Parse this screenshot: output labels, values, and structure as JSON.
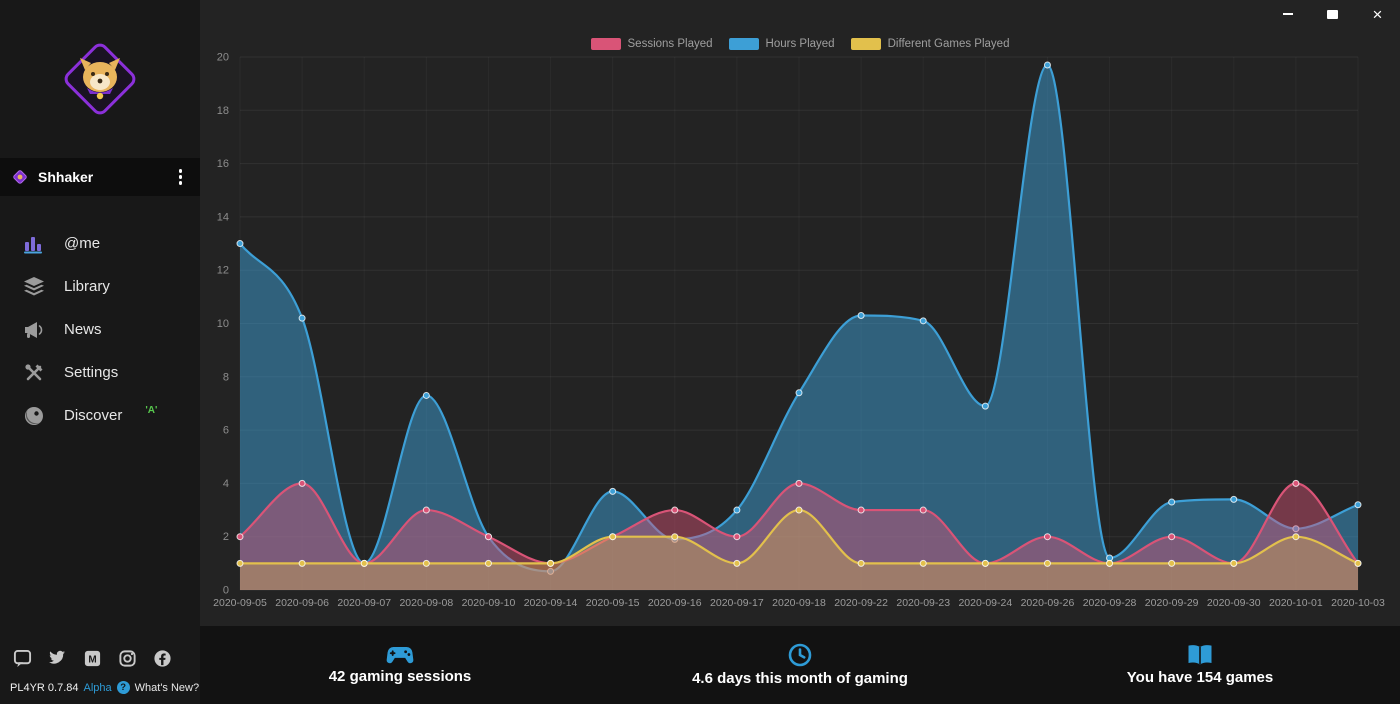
{
  "sidebar": {
    "user": {
      "name": "Shhaker"
    },
    "nav": [
      {
        "label": "@me"
      },
      {
        "label": "Library"
      },
      {
        "label": "News"
      },
      {
        "label": "Settings"
      },
      {
        "label": "Discover",
        "badge": "'A'"
      }
    ],
    "footer": {
      "version": "PL4YR 0.7.84",
      "channel": "Alpha",
      "help": "?",
      "whats_new": "What's New?"
    }
  },
  "stats": [
    {
      "icon": "gamepad-icon",
      "label": "42 gaming sessions"
    },
    {
      "icon": "clock-icon",
      "label": "4.6 days this month of gaming"
    },
    {
      "icon": "book-icon",
      "label": "You have 154 games"
    }
  ],
  "colors": {
    "accent_blue": "#2e9bd6",
    "sessions_pink": "#d95477",
    "hours_blue": "#3d9fd6",
    "games_yellow": "#e2c04c",
    "badge_green": "#57c84d"
  },
  "chart_data": {
    "type": "area",
    "categories": [
      "2020-09-05",
      "2020-09-06",
      "2020-09-07",
      "2020-09-08",
      "2020-09-10",
      "2020-09-14",
      "2020-09-15",
      "2020-09-16",
      "2020-09-17",
      "2020-09-18",
      "2020-09-22",
      "2020-09-23",
      "2020-09-24",
      "2020-09-26",
      "2020-09-28",
      "2020-09-29",
      "2020-09-30",
      "2020-10-01",
      "2020-10-03"
    ],
    "series": [
      {
        "name": "Sessions Played",
        "color": "#d95477",
        "fill_opacity": 0.45,
        "values": [
          2,
          4,
          1,
          3,
          2,
          1,
          2,
          3,
          2,
          4,
          3,
          3,
          1,
          2,
          1,
          2,
          1,
          4,
          1
        ]
      },
      {
        "name": "Hours Played",
        "color": "#3d9fd6",
        "fill_opacity": 0.5,
        "values": [
          13,
          10.2,
          1,
          7.3,
          2,
          0.7,
          3.7,
          1.9,
          3,
          7.4,
          10.3,
          10.1,
          6.9,
          19.7,
          1.2,
          3.3,
          3.4,
          2.3,
          3.2
        ]
      },
      {
        "name": "Different Games Played",
        "color": "#e2c04c",
        "fill_opacity": 0.32,
        "values": [
          1,
          1,
          1,
          1,
          1,
          1,
          2,
          2,
          1,
          3,
          1,
          1,
          1,
          1,
          1,
          1,
          1,
          2,
          1
        ]
      }
    ],
    "ylim": [
      0,
      20
    ],
    "ytick_step": 2,
    "grid": true,
    "legend_position": "top"
  }
}
